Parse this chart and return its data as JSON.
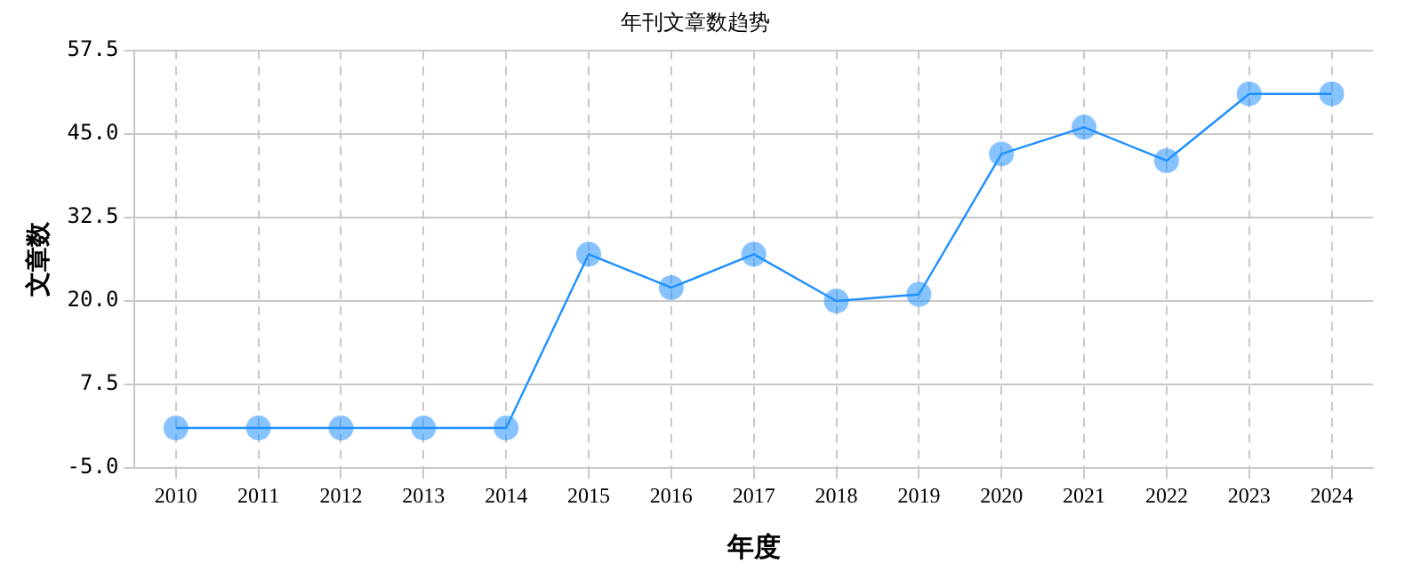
{
  "chart_data": {
    "type": "line",
    "title": "年刊文章数趋势",
    "xlabel": "年度",
    "ylabel": "文章数",
    "categories": [
      "2010",
      "2011",
      "2012",
      "2013",
      "2014",
      "2015",
      "2016",
      "2017",
      "2018",
      "2019",
      "2020",
      "2021",
      "2022",
      "2023",
      "2024"
    ],
    "series": [
      {
        "color": "#1e90ff",
        "values": [
          1,
          1,
          1,
          1,
          1,
          27,
          22,
          27,
          20,
          21,
          42,
          46,
          41,
          51,
          51
        ]
      }
    ],
    "ylim": [
      -5,
      57.5
    ],
    "yticks": [
      {
        "value": -5,
        "label": "-5.0"
      },
      7.5,
      {
        "value": 20,
        "label": "20.0"
      },
      32.5,
      {
        "value": 45,
        "label": "45.0"
      },
      57.5
    ],
    "grid": true,
    "marker": "circle",
    "line_style": "solid",
    "legend": false
  }
}
